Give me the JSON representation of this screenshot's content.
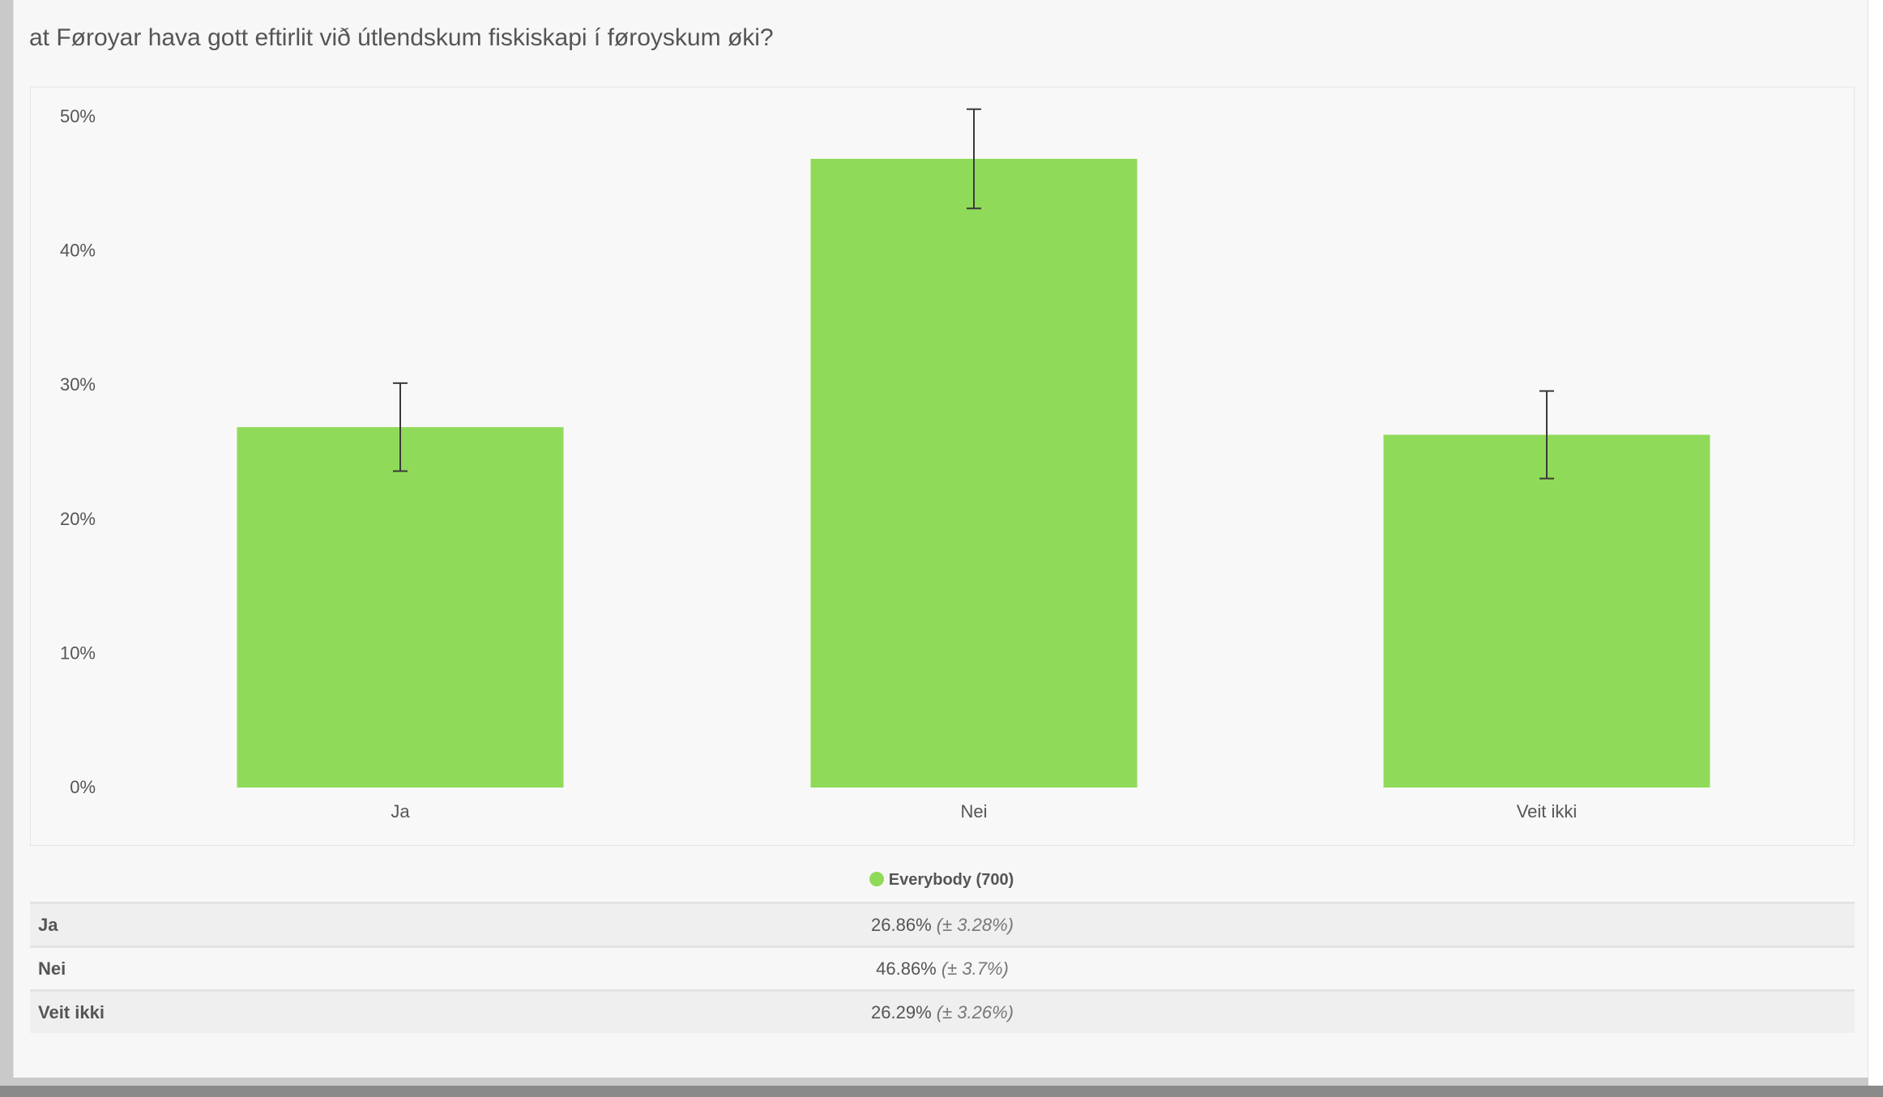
{
  "question": "at Føroyar hava gott eftirlit við útlendskum fiskiskapi í føroyskum øki?",
  "colors": {
    "bar": "#8fdb59",
    "errorbar": "#3a3a3a",
    "axis_text": "#555555"
  },
  "chart_data": {
    "type": "bar",
    "categories": [
      "Ja",
      "Nei",
      "Veit ikki"
    ],
    "series": [
      {
        "name": "Everybody (700)",
        "values": [
          26.86,
          46.86,
          26.29
        ],
        "error": [
          3.28,
          3.7,
          3.26
        ]
      }
    ],
    "ylim": [
      0,
      50
    ],
    "yticks": [
      "0%",
      "10%",
      "20%",
      "30%",
      "40%",
      "50%"
    ],
    "ytick_values": [
      0,
      10,
      20,
      30,
      40,
      50
    ],
    "grid": false
  },
  "legend": {
    "label": "Everybody (700)"
  },
  "table": {
    "rows": [
      {
        "label": "Ja",
        "value": "26.86%",
        "margin": "(± 3.28%)"
      },
      {
        "label": "Nei",
        "value": "46.86%",
        "margin": "(± 3.7%)"
      },
      {
        "label": "Veit ikki",
        "value": "26.29%",
        "margin": "(± 3.26%)"
      }
    ]
  }
}
